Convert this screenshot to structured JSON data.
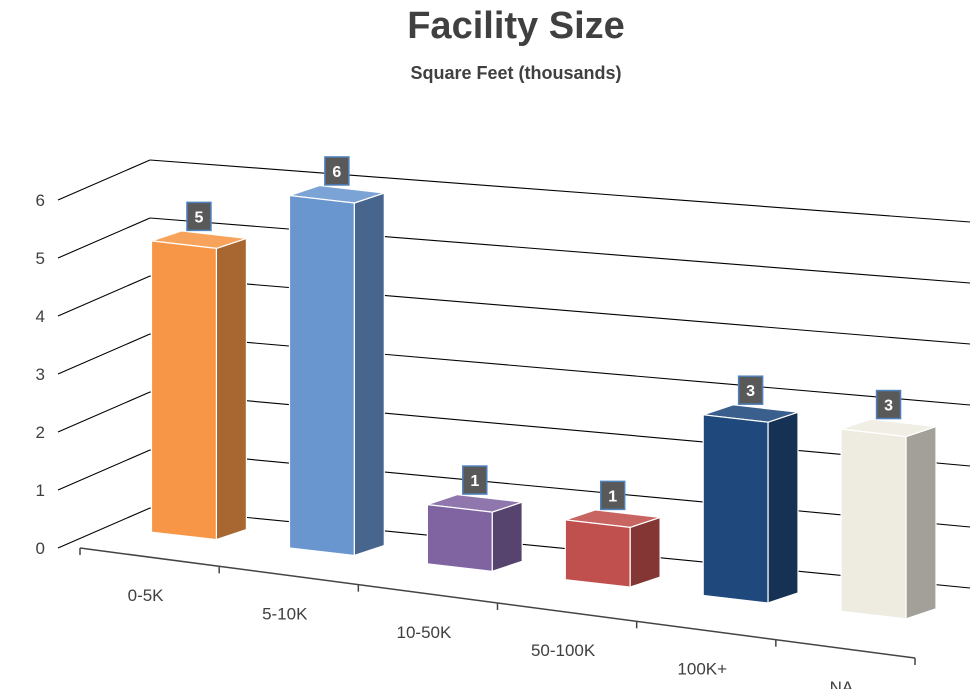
{
  "chart_data": {
    "type": "bar",
    "title": "Facility Size",
    "subtitle": "Square Feet (thousands)",
    "xlabel": "",
    "ylabel": "",
    "categories": [
      "0-5K",
      "5-10K",
      "10-50K",
      "50-100K",
      "100K+",
      "NA"
    ],
    "values": [
      5,
      6,
      1,
      1,
      3,
      3
    ],
    "data_labels": [
      "5",
      "6",
      "1",
      "1",
      "3",
      "3"
    ],
    "y_ticks": [
      "0",
      "1",
      "2",
      "3",
      "4",
      "5",
      "6"
    ],
    "ylim": [
      0,
      6
    ],
    "grid": true,
    "legend": "none",
    "style": "3d-column",
    "bar_colors": [
      "#F79646",
      "#6A96CF",
      "#8064A2",
      "#C0504D",
      "#1F497D",
      "#EEECE1"
    ],
    "label_box_color": "#595959",
    "label_box_border": "#4F81BD"
  }
}
